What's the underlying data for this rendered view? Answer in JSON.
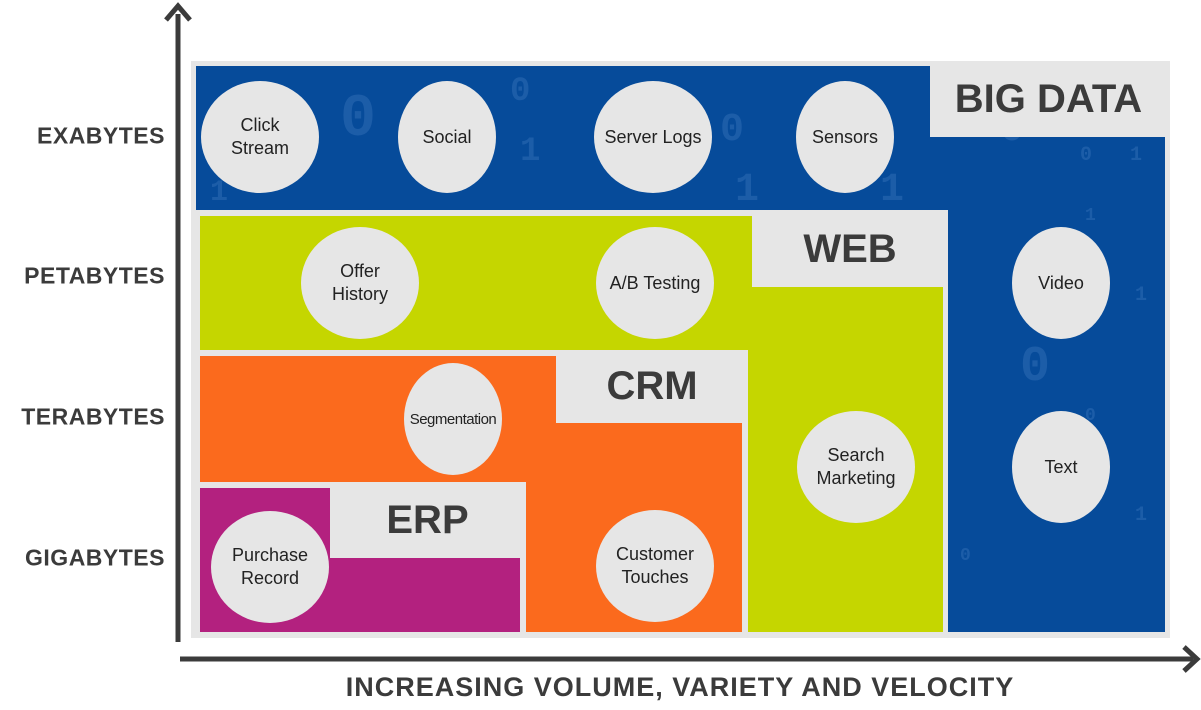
{
  "y_axis": {
    "levels": [
      "EXABYTES",
      "PETABYTES",
      "TERABYTES",
      "GIGABYTES"
    ]
  },
  "x_axis": {
    "label": "INCREASING VOLUME, VARIETY AND VELOCITY"
  },
  "colors": {
    "big_data": "#064b9a",
    "web": "#c5d600",
    "crm": "#fb6a1d",
    "erp": "#b3217f",
    "label_box": "#e6e6e6",
    "axis": "#3b3b3b"
  },
  "categories": {
    "big_data": {
      "label": "BIG DATA",
      "items": [
        "Click Stream",
        "Social",
        "Server Logs",
        "Sensors",
        "Video",
        "Text"
      ]
    },
    "web": {
      "label": "WEB",
      "items": [
        "Offer History",
        "A/B Testing",
        "Search Marketing"
      ]
    },
    "crm": {
      "label": "CRM",
      "items": [
        "Segmentation",
        "Customer Touches"
      ]
    },
    "erp": {
      "label": "ERP",
      "items": [
        "Purchase Record"
      ]
    }
  }
}
